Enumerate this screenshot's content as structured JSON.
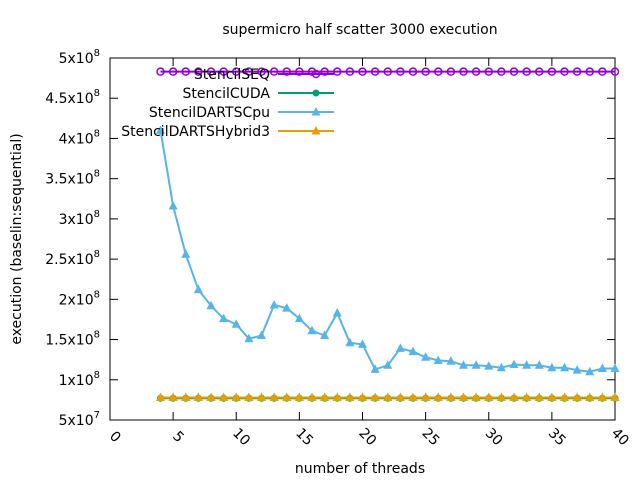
{
  "chart_data": {
    "type": "line",
    "title": "supermicro half scatter 3000 execution",
    "xlabel": "number of threads",
    "ylabel": "execution (baselin:sequential)",
    "xlim": [
      0,
      40
    ],
    "ylim": [
      50000000,
      500000000
    ],
    "x_ticks": [
      0,
      5,
      10,
      15,
      20,
      25,
      30,
      35,
      40
    ],
    "y_ticks": [
      {
        "value": 50000000,
        "mantissa": "5x10",
        "exp": "7"
      },
      {
        "value": 100000000,
        "mantissa": "1x10",
        "exp": "8"
      },
      {
        "value": 150000000,
        "mantissa": "1.5x10",
        "exp": "8"
      },
      {
        "value": 200000000,
        "mantissa": "2x10",
        "exp": "8"
      },
      {
        "value": 250000000,
        "mantissa": "2.5x10",
        "exp": "8"
      },
      {
        "value": 300000000,
        "mantissa": "3x10",
        "exp": "8"
      },
      {
        "value": 350000000,
        "mantissa": "3.5x10",
        "exp": "8"
      },
      {
        "value": 400000000,
        "mantissa": "4x10",
        "exp": "8"
      },
      {
        "value": 450000000,
        "mantissa": "4.5x10",
        "exp": "8"
      },
      {
        "value": 500000000,
        "mantissa": "5x10",
        "exp": "8"
      }
    ],
    "x": [
      4,
      5,
      6,
      7,
      8,
      9,
      10,
      11,
      12,
      13,
      14,
      15,
      16,
      17,
      18,
      19,
      20,
      21,
      22,
      23,
      24,
      25,
      26,
      27,
      28,
      29,
      30,
      31,
      32,
      33,
      34,
      35,
      36,
      37,
      38,
      39,
      40
    ],
    "series": [
      {
        "name": "StencilSEQ",
        "color": "#9400d3",
        "marker": "circle-open",
        "values": [
          483000000,
          483000000,
          483000000,
          483000000,
          483000000,
          483000000,
          483000000,
          483000000,
          483000000,
          483000000,
          483000000,
          483000000,
          483000000,
          483000000,
          483000000,
          483000000,
          483000000,
          483000000,
          483000000,
          483000000,
          483000000,
          483000000,
          483000000,
          483000000,
          483000000,
          483000000,
          483000000,
          483000000,
          483000000,
          483000000,
          483000000,
          483000000,
          483000000,
          483000000,
          483000000,
          483000000,
          483000000
        ]
      },
      {
        "name": "StencilCUDA",
        "color": "#009e73",
        "marker": "circle",
        "values": [
          77000000,
          77000000,
          77000000,
          77000000,
          77000000,
          77000000,
          77000000,
          77000000,
          77000000,
          77000000,
          77000000,
          77000000,
          77000000,
          77000000,
          77000000,
          77000000,
          77000000,
          77000000,
          77000000,
          77000000,
          77000000,
          77000000,
          77000000,
          77000000,
          77000000,
          77000000,
          77000000,
          77000000,
          77000000,
          77000000,
          77000000,
          77000000,
          77000000,
          77000000,
          77000000,
          77000000,
          77000000
        ]
      },
      {
        "name": "StencilDARTSCpu",
        "color": "#56b4e9",
        "marker": "triangle",
        "values": [
          410000000,
          316000000,
          256000000,
          212000000,
          192000000,
          176000000,
          169000000,
          151000000,
          155000000,
          193000000,
          189000000,
          176000000,
          161000000,
          155000000,
          183000000,
          146000000,
          144000000,
          113000000,
          118000000,
          139000000,
          135000000,
          128000000,
          124000000,
          123000000,
          118000000,
          118000000,
          117000000,
          115000000,
          119000000,
          118000000,
          118000000,
          115000000,
          115000000,
          112000000,
          110000000,
          114000000,
          114000000
        ]
      },
      {
        "name": "StencilDARTSHybrid3",
        "color": "#e69f00",
        "marker": "triangle",
        "values": [
          78000000,
          78000000,
          78000000,
          78000000,
          78000000,
          78000000,
          78000000,
          78000000,
          78000000,
          78000000,
          78000000,
          78000000,
          78000000,
          78000000,
          78000000,
          78000000,
          78000000,
          78000000,
          78000000,
          78000000,
          78000000,
          78000000,
          78000000,
          78000000,
          78000000,
          78000000,
          78000000,
          78000000,
          78000000,
          78000000,
          78000000,
          78000000,
          78000000,
          78000000,
          78000000,
          78000000,
          78000000
        ]
      }
    ],
    "grid": false,
    "legend_position": "top-right-inside"
  }
}
